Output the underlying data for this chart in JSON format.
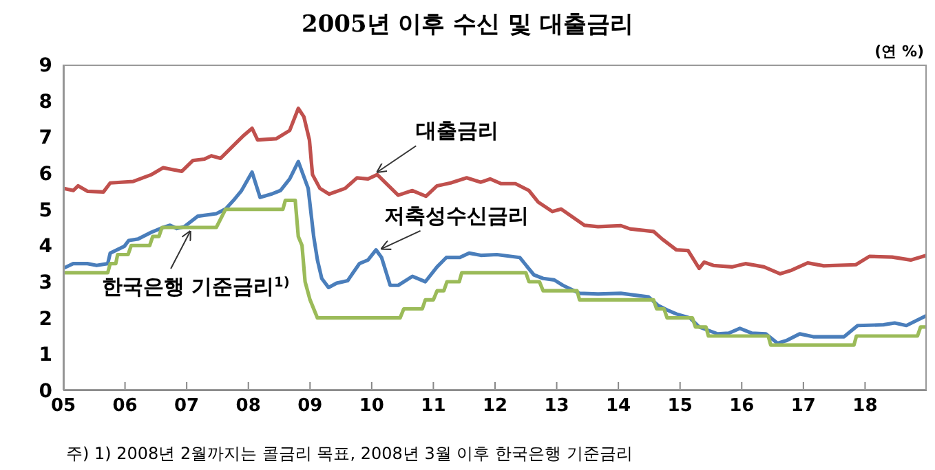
{
  "chart_data": {
    "type": "line",
    "title": "2005년 이후 수신 및 대출금리",
    "ylabel": "(연 %)",
    "xlim": [
      2005,
      2019
    ],
    "xticks": [
      {
        "value": 2005,
        "label": "05"
      },
      {
        "value": 2006,
        "label": "06"
      },
      {
        "value": 2007,
        "label": "07"
      },
      {
        "value": 2008,
        "label": "08"
      },
      {
        "value": 2009,
        "label": "09"
      },
      {
        "value": 2010,
        "label": "10"
      },
      {
        "value": 2011,
        "label": "11"
      },
      {
        "value": 2012,
        "label": "12"
      },
      {
        "value": 2013,
        "label": "13"
      },
      {
        "value": 2014,
        "label": "14"
      },
      {
        "value": 2015,
        "label": "15"
      },
      {
        "value": 2016,
        "label": "16"
      },
      {
        "value": 2017,
        "label": "17"
      },
      {
        "value": 2018,
        "label": "18"
      }
    ],
    "ylim": [
      0,
      9
    ],
    "yticks": [
      0,
      1,
      2,
      3,
      4,
      5,
      6,
      7,
      8,
      9
    ],
    "grid": false,
    "marker": "none",
    "line_style": "solid",
    "series": [
      {
        "color": "#c0504d",
        "x": [
          2005,
          2005.16,
          2005.24,
          2005.39,
          2005.65,
          2005.76,
          2006.13,
          2006.43,
          2006.62,
          2006.92,
          2007.1,
          2007.29,
          2007.4,
          2007.55,
          2007.78,
          2007.93,
          2008.06,
          2008.15,
          2008.45,
          2008.67,
          2008.81,
          2008.9,
          2008.99,
          2009.04,
          2009.16,
          2009.31,
          2009.57,
          2009.76,
          2009.94,
          2010.09,
          2010.24,
          2010.43,
          2010.66,
          2010.88,
          2011.06,
          2011.28,
          2011.54,
          2011.77,
          2011.92,
          2012.1,
          2012.33,
          2012.55,
          2012.7,
          2012.93,
          2013.07,
          2013.45,
          2013.67,
          2014.04,
          2014.19,
          2014.57,
          2014.71,
          2014.94,
          2015.13,
          2015.31,
          2015.39,
          2015.54,
          2015.84,
          2016.06,
          2016.36,
          2016.62,
          2016.81,
          2017.07,
          2017.33,
          2017.85,
          2018.07,
          2018.44,
          2018.74,
          2019
        ],
        "values": [
          5.58,
          5.52,
          5.65,
          5.5,
          5.48,
          5.73,
          5.77,
          5.96,
          6.15,
          6.05,
          6.35,
          6.39,
          6.48,
          6.41,
          6.8,
          7.05,
          7.24,
          6.92,
          6.95,
          7.18,
          7.79,
          7.56,
          6.92,
          5.96,
          5.58,
          5.42,
          5.58,
          5.87,
          5.84,
          5.96,
          5.71,
          5.39,
          5.52,
          5.36,
          5.65,
          5.73,
          5.87,
          5.75,
          5.84,
          5.71,
          5.71,
          5.52,
          5.2,
          4.94,
          5.01,
          4.56,
          4.52,
          4.55,
          4.46,
          4.39,
          4.18,
          3.88,
          3.86,
          3.37,
          3.54,
          3.45,
          3.41,
          3.5,
          3.41,
          3.22,
          3.32,
          3.52,
          3.44,
          3.47,
          3.7,
          3.68,
          3.6,
          3.73
        ]
      },
      {
        "color": "#4a7ebb",
        "x": [
          2005,
          2005.16,
          2005.39,
          2005.54,
          2005.72,
          2005.76,
          2005.99,
          2006.06,
          2006.21,
          2006.43,
          2006.62,
          2006.73,
          2006.84,
          2006.96,
          2007.18,
          2007.48,
          2007.63,
          2007.78,
          2007.89,
          2008.06,
          2008.19,
          2008.37,
          2008.52,
          2008.67,
          2008.81,
          2008.97,
          2009.06,
          2009.12,
          2009.19,
          2009.3,
          2009.43,
          2009.61,
          2009.8,
          2009.94,
          2010.07,
          2010.16,
          2010.3,
          2010.43,
          2010.66,
          2010.87,
          2011.06,
          2011.21,
          2011.43,
          2011.58,
          2011.77,
          2012.03,
          2012.4,
          2012.63,
          2012.78,
          2012.96,
          2013.1,
          2013.37,
          2013.67,
          2014.04,
          2014.49,
          2014.64,
          2014.79,
          2014.94,
          2015.16,
          2015.31,
          2015.61,
          2015.79,
          2015.97,
          2016.16,
          2016.39,
          2016.58,
          2016.72,
          2016.94,
          2017.16,
          2017.66,
          2017.88,
          2018.3,
          2018.48,
          2018.67,
          2019
        ],
        "values": [
          3.37,
          3.5,
          3.5,
          3.45,
          3.5,
          3.79,
          3.98,
          4.14,
          4.18,
          4.37,
          4.5,
          4.56,
          4.47,
          4.52,
          4.81,
          4.88,
          5.01,
          5.29,
          5.52,
          6.03,
          5.33,
          5.42,
          5.52,
          5.84,
          6.32,
          5.58,
          4.24,
          3.6,
          3.09,
          2.84,
          2.96,
          3.03,
          3.5,
          3.6,
          3.88,
          3.67,
          2.9,
          2.9,
          3.15,
          3,
          3.41,
          3.67,
          3.67,
          3.79,
          3.73,
          3.75,
          3.67,
          3.19,
          3.09,
          3.05,
          2.9,
          2.68,
          2.66,
          2.68,
          2.58,
          2.35,
          2.22,
          2.11,
          2,
          1.75,
          1.56,
          1.58,
          1.71,
          1.58,
          1.56,
          1.3,
          1.37,
          1.56,
          1.48,
          1.48,
          1.79,
          1.81,
          1.86,
          1.79,
          2.07
        ]
      },
      {
        "color": "#9bbb59",
        "x": [
          2005,
          2005.72,
          2005.76,
          2005.85,
          2005.88,
          2006.05,
          2006.1,
          2006.4,
          2006.45,
          2006.55,
          2006.6,
          2007.48,
          2007.63,
          2008.56,
          2008.6,
          2008.76,
          2008.81,
          2008.87,
          2008.92,
          2009.0,
          2009.06,
          2009.12,
          2010.46,
          2010.52,
          2010.82,
          2010.87,
          2011.0,
          2011.06,
          2011.17,
          2011.22,
          2011.42,
          2011.46,
          2012.5,
          2012.55,
          2012.72,
          2012.78,
          2013.33,
          2013.37,
          2014.57,
          2014.62,
          2014.74,
          2014.79,
          2015.2,
          2015.25,
          2015.42,
          2015.46,
          2016.43,
          2016.47,
          2017.82,
          2017.86,
          2018.85,
          2018.9,
          2019
        ],
        "values": [
          3.25,
          3.25,
          3.5,
          3.5,
          3.75,
          3.75,
          4,
          4,
          4.25,
          4.25,
          4.5,
          4.5,
          5,
          5,
          5.25,
          5.25,
          4.25,
          4,
          3,
          2.5,
          2.25,
          2,
          2,
          2.25,
          2.25,
          2.5,
          2.5,
          2.75,
          2.75,
          3,
          3,
          3.25,
          3.25,
          3,
          3,
          2.75,
          2.75,
          2.5,
          2.5,
          2.25,
          2.25,
          2,
          2,
          1.75,
          1.75,
          1.5,
          1.5,
          1.25,
          1.25,
          1.5,
          1.5,
          1.75,
          1.75
        ]
      }
    ],
    "annotations": [
      {
        "text": "대출금리",
        "x": 2010.05,
        "y": 5.92
      },
      {
        "text": "저축성수신금리",
        "x": 2010.12,
        "y": 3.8
      },
      {
        "text": "한국은행 기준금리$^{1)}$",
        "x": 2007.1,
        "y": 4.5
      },
      "주) 1) 2008년 2월까지는 콜금리 목표, 2008년 3월 이후 한국은행 기준금리"
    ]
  }
}
